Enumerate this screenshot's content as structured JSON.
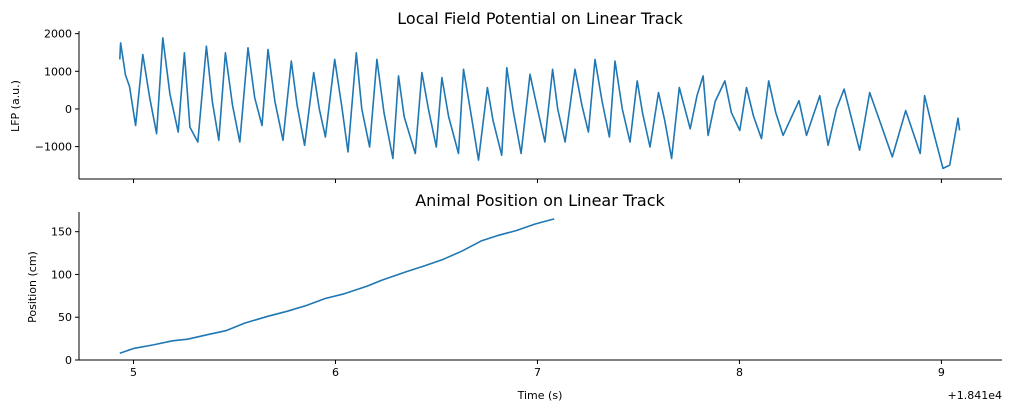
{
  "chart_data": [
    {
      "type": "line",
      "title": "Local Field Potential on Linear Track",
      "xlabel": "",
      "ylabel": "LFP (a.u.)",
      "xlim": [
        4.73,
        9.3
      ],
      "ylim": [
        -1860,
        2070
      ],
      "xticks": [
        5,
        6,
        7,
        8,
        9
      ],
      "xtick_labels_shown": false,
      "yticks": [
        -1000,
        0,
        1000,
        2000
      ],
      "ytick_labels": [
        "−1000",
        "0",
        "1000",
        "2000"
      ],
      "grid": false,
      "color": "#1f77b4",
      "series": [
        {
          "name": "LFP",
          "x": [
            4.932,
            4.936,
            4.96,
            4.98,
            5.01,
            5.046,
            5.08,
            5.114,
            5.145,
            5.18,
            5.221,
            5.252,
            5.279,
            5.318,
            5.361,
            5.39,
            5.422,
            5.455,
            5.49,
            5.526,
            5.567,
            5.6,
            5.636,
            5.666,
            5.7,
            5.74,
            5.781,
            5.81,
            5.847,
            5.892,
            5.92,
            5.95,
            5.996,
            6.03,
            6.062,
            6.103,
            6.13,
            6.169,
            6.205,
            6.24,
            6.284,
            6.312,
            6.34,
            6.395,
            6.428,
            6.46,
            6.499,
            6.527,
            6.56,
            6.609,
            6.634,
            6.67,
            6.708,
            6.752,
            6.78,
            6.823,
            6.848,
            6.88,
            6.919,
            6.963,
            7.0,
            7.037,
            7.075,
            7.1,
            7.137,
            7.186,
            7.22,
            7.252,
            7.285,
            7.32,
            7.356,
            7.384,
            7.42,
            7.458,
            7.494,
            7.52,
            7.557,
            7.599,
            7.63,
            7.664,
            7.702,
            7.756,
            7.79,
            7.82,
            7.845,
            7.88,
            7.928,
            7.96,
            8.002,
            8.035,
            8.07,
            8.109,
            8.145,
            8.18,
            8.216,
            8.295,
            8.332,
            8.398,
            8.439,
            8.48,
            8.518,
            8.595,
            8.645,
            8.7,
            8.757,
            8.823,
            8.895,
            8.917,
            8.96,
            9.008,
            9.041,
            9.082,
            9.09
          ],
          "y": [
            1316,
            1754,
            900,
            600,
            -439,
            1447,
            300,
            -658,
            1886,
            400,
            -614,
            1491,
            -482,
            -877,
            1667,
            200,
            -833,
            1491,
            100,
            -877,
            1623,
            300,
            -439,
            1579,
            200,
            -833,
            1272,
            100,
            -965,
            965,
            0,
            -746,
            1316,
            100,
            -1140,
            1491,
            0,
            -1009,
            1316,
            -100,
            -1316,
            877,
            -210,
            -1184,
            965,
            0,
            -1009,
            833,
            -200,
            -1184,
            1053,
            -100,
            -1359,
            570,
            -300,
            -1228,
            1096,
            -50,
            -1184,
            921,
            0,
            -877,
            1053,
            0,
            -877,
            1053,
            100,
            -614,
            1316,
            200,
            -746,
            1272,
            0,
            -877,
            746,
            -100,
            -1009,
            438,
            -300,
            -1316,
            570,
            -526,
            351,
            877,
            -702,
            200,
            746,
            -100,
            -570,
            570,
            -200,
            -789,
            746,
            -100,
            -702,
            219,
            -702,
            351,
            -965,
            0,
            526,
            -1096,
            438,
            -400,
            -1272,
            -44,
            -1184,
            351,
            -600,
            -1579,
            -1491,
            -246,
            -570
          ]
        }
      ]
    },
    {
      "type": "line",
      "title": "Animal Position on Linear Track",
      "xlabel": "Time (s)",
      "ylabel": "Position (cm)",
      "x_offset_label": "+1.841e4",
      "xlim": [
        4.73,
        9.3
      ],
      "ylim": [
        0,
        173
      ],
      "xticks": [
        5,
        6,
        7,
        8,
        9
      ],
      "xtick_labels": [
        "5",
        "6",
        "7",
        "8",
        "9"
      ],
      "yticks": [
        0,
        50,
        100,
        150
      ],
      "ytick_labels": [
        "0",
        "50",
        "100",
        "150"
      ],
      "grid": false,
      "color": "#1f77b4",
      "series": [
        {
          "name": "Position",
          "x": [
            4.932,
            5.004,
            5.098,
            5.193,
            5.268,
            5.363,
            5.457,
            5.552,
            5.665,
            5.76,
            5.854,
            5.949,
            6.043,
            6.157,
            6.232,
            6.346,
            6.44,
            6.535,
            6.629,
            6.724,
            6.8,
            6.894,
            6.989,
            7.083
          ],
          "y": [
            7.9,
            13.7,
            17.7,
            22.4,
            24.3,
            29.5,
            34.2,
            43.2,
            51.1,
            56.9,
            63.6,
            71.9,
            77.4,
            86.4,
            93.5,
            102.9,
            110.0,
            117.8,
            127.6,
            139.4,
            145.3,
            151.2,
            159.0,
            164.9
          ]
        }
      ]
    }
  ]
}
